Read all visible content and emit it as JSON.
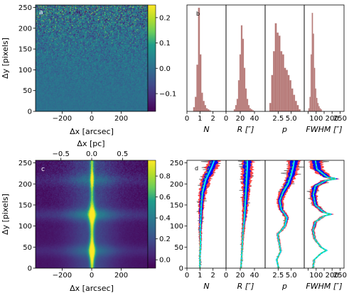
{
  "colors": {
    "hist_fill": "#b77a78",
    "hist_edge": "#c9a2a0",
    "sample_gray": "#6b6b6b",
    "band_blue": "#0000ff",
    "band_red": "#ff2a2a",
    "median_cyan": "#00e5ff",
    "fit_green": "#3dcc5a",
    "line_dark": "#202020",
    "viridis": [
      "#440154",
      "#482777",
      "#3f4a8a",
      "#31688e",
      "#26838f",
      "#1f9d8a",
      "#6cce5a",
      "#b6de2b",
      "#fee825"
    ]
  },
  "chart_data": [
    {
      "id": "a",
      "type": "heatmap",
      "panel_label": "a",
      "xlabel": "Δx [arcsec]",
      "ylabel": "Δy [pixels]",
      "xlim": [
        -380,
        380
      ],
      "ylim": [
        0,
        256
      ],
      "xticks": [
        -200,
        0,
        200
      ],
      "xtick_labels": [
        "−200",
        "0",
        "200"
      ],
      "yticks": [
        0,
        50,
        100,
        150,
        200,
        250
      ],
      "ytick_labels": [
        "0",
        "50",
        "100",
        "150",
        "200",
        "250"
      ],
      "colorbar": {
        "range": [
          -0.17,
          0.25
        ],
        "ticks": [
          -0.1,
          0.0,
          0.1,
          0.2
        ],
        "tick_labels": [
          "−0.1",
          "0.0",
          "0.1",
          "0.2"
        ]
      },
      "description": "noise map; scatter amplitude grows with Δy"
    },
    {
      "id": "b",
      "type": "bar",
      "panel_label": "b",
      "subpanels": [
        {
          "xlabel": "N",
          "xlim": [
            0,
            3
          ],
          "xticks": [
            0,
            1,
            2
          ],
          "xtick_labels": [
            "0",
            "1",
            "2"
          ],
          "bin_centers": [
            0.55,
            0.68,
            0.8,
            0.92,
            1.04,
            1.16,
            1.28,
            1.4,
            1.52,
            1.64,
            1.76
          ],
          "counts": [
            0.04,
            0.14,
            0.45,
            1.0,
            0.55,
            0.18,
            0.1,
            0.06,
            0.03,
            0.02,
            0.01
          ]
        },
        {
          "xlabel": "R [″]",
          "xlim": [
            0,
            55
          ],
          "xticks": [
            0,
            20,
            40
          ],
          "xtick_labels": [
            "0",
            "20",
            "40"
          ],
          "bin_centers": [
            12,
            14,
            16,
            18,
            20,
            22,
            24,
            26,
            28,
            30,
            32,
            34,
            36,
            38
          ],
          "counts": [
            0.02,
            0.06,
            0.12,
            0.3,
            0.55,
            0.83,
            0.7,
            0.42,
            0.22,
            0.12,
            0.06,
            0.03,
            0.02,
            0.01
          ]
        },
        {
          "xlabel": "p",
          "xlim": [
            0,
            7.5
          ],
          "xticks": [
            2.5,
            5.0
          ],
          "xtick_labels": [
            "2.5",
            "5.0"
          ],
          "bin_centers": [
            1.0,
            1.35,
            1.7,
            2.05,
            2.4,
            2.75,
            3.1,
            3.45,
            3.8,
            4.15,
            4.5,
            4.85,
            5.2,
            5.55,
            5.9,
            6.25,
            6.6
          ],
          "counts": [
            0.08,
            0.35,
            0.58,
            0.85,
            0.76,
            0.73,
            0.58,
            0.55,
            0.42,
            0.4,
            0.35,
            0.3,
            0.22,
            0.16,
            0.1,
            0.06,
            0.02
          ]
        },
        {
          "xlabel": "FWHM [″]",
          "xlim": [
            25,
            275
          ],
          "xticks": [
            50,
            100,
            150,
            200,
            250
          ],
          "xtick_labels": [
            "",
            "100",
            "",
            "200",
            "250"
          ],
          "bin_centers": [
            55,
            62,
            69,
            76,
            83,
            90,
            97,
            104,
            111,
            118,
            125,
            132
          ],
          "counts": [
            0.03,
            0.14,
            0.55,
            0.95,
            0.75,
            0.42,
            0.22,
            0.13,
            0.08,
            0.05,
            0.03,
            0.02
          ]
        }
      ]
    },
    {
      "id": "c",
      "type": "heatmap",
      "panel_label": "c",
      "xlabel": "Δx [arcsec]",
      "ylabel": "Δy [pixels]",
      "top_xlabel": "Δx [pc]",
      "xlim": [
        -380,
        380
      ],
      "ylim": [
        0,
        256
      ],
      "xticks": [
        -200,
        0,
        200
      ],
      "xtick_labels": [
        "−200",
        "0",
        "200"
      ],
      "top_xticks": [
        -0.5,
        0.0,
        0.5
      ],
      "top_xtick_labels": [
        "−0.5",
        "0.0",
        "0.5"
      ],
      "top_scale": 0.0024,
      "yticks": [
        0,
        50,
        100,
        150,
        200,
        250
      ],
      "ytick_labels": [
        "0",
        "50",
        "100",
        "150",
        "200",
        "250"
      ],
      "colorbar": {
        "range": [
          -0.08,
          0.95
        ],
        "ticks": [
          0.0,
          0.2,
          0.4,
          0.6,
          0.8
        ],
        "tick_labels": [
          "0.0",
          "0.2",
          "0.4",
          "0.6",
          "0.8"
        ]
      },
      "horizontal_bands_y": [
        42,
        128,
        210
      ],
      "description": "filament emission along Δx ≈ 0"
    },
    {
      "id": "d",
      "type": "line",
      "panel_label": "d",
      "ylim": [
        0,
        256
      ],
      "yticks": [
        0,
        50,
        100,
        150,
        200,
        250
      ],
      "ytick_labels": [
        "0",
        "50",
        "100",
        "150",
        "200",
        "250"
      ],
      "subpanels": [
        {
          "xlabel": "N",
          "xlim": [
            0,
            3
          ],
          "xticks": [
            0,
            1,
            2
          ],
          "xtick_labels": [
            "0",
            "1",
            "2"
          ],
          "median_y": [
            0,
            30,
            60,
            90,
            120,
            150,
            180,
            210,
            240,
            256
          ],
          "median_x": [
            1.0,
            1.0,
            1.05,
            1.02,
            1.06,
            1.1,
            1.2,
            1.45,
            1.9,
            2.1
          ],
          "fit_x": [
            1.0,
            1.0,
            1.02,
            1.02,
            1.05,
            1.08,
            1.15,
            1.35,
            1.7,
            1.9
          ]
        },
        {
          "xlabel": "R [″]",
          "xlim": [
            0,
            55
          ],
          "xticks": [
            0,
            20,
            40
          ],
          "xtick_labels": [
            "0",
            "20",
            "40"
          ],
          "median_y": [
            0,
            30,
            60,
            90,
            120,
            150,
            180,
            210,
            240,
            256
          ],
          "median_x": [
            21,
            22,
            23,
            24,
            26,
            27,
            28,
            29,
            30,
            30
          ],
          "fit_x": [
            21,
            22,
            23,
            24,
            25,
            26,
            27,
            28,
            28,
            28
          ]
        },
        {
          "xlabel": "p",
          "xlim": [
            0,
            7.5
          ],
          "xticks": [
            2.5,
            5.0
          ],
          "xtick_labels": [
            "2.5",
            "5.0"
          ],
          "median_y": [
            0,
            20,
            40,
            60,
            80,
            100,
            120,
            140,
            160,
            180,
            200,
            220,
            240,
            256
          ],
          "median_x": [
            2.6,
            2.2,
            3.0,
            2.7,
            2.4,
            3.8,
            4.2,
            3.1,
            2.8,
            3.4,
            4.4,
            5.0,
            5.4,
            5.6
          ],
          "fit_x": [
            2.6,
            2.3,
            2.9,
            2.7,
            2.5,
            3.6,
            4.0,
            3.2,
            2.9,
            3.3,
            4.2,
            4.8,
            5.2,
            5.4
          ]
        },
        {
          "xlabel": "FWHM [″]",
          "xlim": [
            25,
            275
          ],
          "xticks": [
            50,
            100,
            150,
            200,
            250
          ],
          "xtick_labels": [
            "",
            "100",
            "",
            "200",
            "250"
          ],
          "median_y": [
            0,
            20,
            35,
            42,
            50,
            70,
            90,
            110,
            124,
            128,
            132,
            150,
            175,
            195,
            208,
            212,
            216,
            235,
            256
          ],
          "median_x": [
            80,
            88,
            130,
            165,
            130,
            90,
            80,
            95,
            150,
            195,
            150,
            95,
            82,
            95,
            160,
            225,
            170,
            105,
            95
          ],
          "fit_x": [
            80,
            88,
            128,
            160,
            128,
            90,
            80,
            95,
            148,
            190,
            148,
            95,
            82,
            95,
            158,
            220,
            168,
            105,
            95
          ]
        }
      ]
    }
  ]
}
